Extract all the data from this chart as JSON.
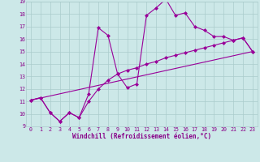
{
  "xlabel": "Windchill (Refroidissement éolien,°C)",
  "line1_x": [
    0,
    1,
    2,
    3,
    4,
    5,
    6,
    7,
    8,
    9,
    10,
    11,
    12,
    13,
    14,
    15,
    16,
    17,
    18,
    19,
    20,
    21,
    22,
    23
  ],
  "line1_y": [
    11.1,
    11.3,
    10.1,
    9.4,
    10.1,
    9.7,
    11.6,
    16.9,
    16.3,
    13.2,
    12.1,
    12.4,
    17.9,
    18.5,
    19.2,
    17.9,
    18.1,
    17.0,
    16.7,
    16.2,
    16.2,
    15.9,
    16.1,
    15.0
  ],
  "line2_x": [
    0,
    1,
    2,
    3,
    4,
    5,
    6,
    7,
    8,
    9,
    10,
    11,
    12,
    13,
    14,
    15,
    16,
    17,
    18,
    19,
    20,
    21,
    22,
    23
  ],
  "line2_y": [
    11.1,
    11.3,
    10.1,
    9.4,
    10.1,
    9.7,
    11.0,
    12.0,
    12.7,
    13.2,
    13.5,
    13.7,
    14.0,
    14.2,
    14.5,
    14.7,
    14.9,
    15.1,
    15.3,
    15.5,
    15.7,
    15.9,
    16.1,
    15.0
  ],
  "line3_x": [
    0,
    23
  ],
  "line3_y": [
    11.1,
    15.0
  ],
  "line_color": "#990099",
  "marker": "D",
  "marker_size": 2.0,
  "linewidth": 0.8,
  "xlim": [
    -0.5,
    23.5
  ],
  "ylim": [
    9,
    19
  ],
  "xticks": [
    0,
    1,
    2,
    3,
    4,
    5,
    6,
    7,
    8,
    9,
    10,
    11,
    12,
    13,
    14,
    15,
    16,
    17,
    18,
    19,
    20,
    21,
    22,
    23
  ],
  "yticks": [
    9,
    10,
    11,
    12,
    13,
    14,
    15,
    16,
    17,
    18,
    19
  ],
  "bg_color": "#cce8e8",
  "grid_color": "#aacccc",
  "font_color": "#880088",
  "tick_fontsize": 4.8,
  "xlabel_fontsize": 5.5
}
